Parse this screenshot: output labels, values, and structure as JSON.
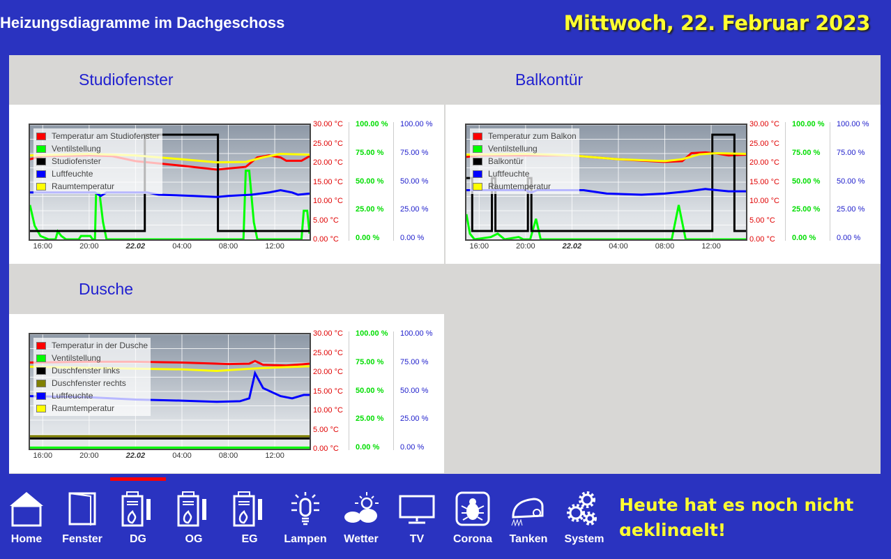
{
  "header": {
    "title": "Heizungsdiagramme im Dachgeschoss",
    "date": "Mittwoch, 22. Februar 2023"
  },
  "axes": {
    "temp": [
      "30.00 °C",
      "25.00 °C",
      "20.00 °C",
      "15.00 °C",
      "10.00 °C",
      "5.00 °C",
      "0.00 °C"
    ],
    "valve": [
      "100.00 %",
      "75.00 %",
      "50.00 %",
      "25.00 %",
      "0.00 %"
    ],
    "humidity": [
      "100.00 %",
      "75.00 %",
      "50.00 %",
      "25.00 %",
      "0.00 %"
    ],
    "x_ticks": [
      "16:00",
      "20:00",
      "22.02",
      "04:00",
      "08:00",
      "12:00"
    ],
    "colors": {
      "temp": "#e00000",
      "valve": "#00dd00",
      "humidity": "#2020cc"
    }
  },
  "chart_data": [
    {
      "type": "line",
      "title": "Studiofenster",
      "x_range_hours": [
        14.9,
        39
      ],
      "ylim_temp": [
        0,
        30
      ],
      "ylim_pct": [
        0,
        100
      ],
      "series": [
        {
          "name": "Temperatur am Studiofenster",
          "color": "#ff0000",
          "axis": "temp",
          "points": [
            [
              14.9,
              21
            ],
            [
              16,
              21.8
            ],
            [
              20,
              22
            ],
            [
              22,
              21.8
            ],
            [
              24,
              20.5
            ],
            [
              28,
              19.3
            ],
            [
              31,
              18.3
            ],
            [
              33.5,
              19
            ],
            [
              34.5,
              21.5
            ],
            [
              35.5,
              22
            ],
            [
              36.5,
              21.5
            ],
            [
              37,
              20.6
            ],
            [
              38.3,
              20.6
            ],
            [
              39,
              21.8
            ]
          ]
        },
        {
          "name": "Ventilstellung",
          "color": "#00ff00",
          "axis": "pct",
          "points": [
            [
              14.9,
              30
            ],
            [
              15.3,
              12
            ],
            [
              15.8,
              3
            ],
            [
              16.5,
              0
            ],
            [
              17.1,
              0
            ],
            [
              17.3,
              7
            ],
            [
              17.6,
              3
            ],
            [
              18,
              0
            ],
            [
              19.1,
              0
            ],
            [
              19.3,
              3
            ],
            [
              20.1,
              3
            ],
            [
              20.3,
              0
            ],
            [
              20.5,
              0
            ],
            [
              20.6,
              40
            ],
            [
              20.9,
              40
            ],
            [
              21.2,
              15
            ],
            [
              21.5,
              0
            ],
            [
              33.3,
              0
            ],
            [
              33.5,
              60
            ],
            [
              33.8,
              60
            ],
            [
              34.2,
              15
            ],
            [
              34.5,
              0
            ],
            [
              38.3,
              0
            ],
            [
              38.5,
              25
            ],
            [
              38.8,
              25
            ],
            [
              39,
              5
            ]
          ]
        },
        {
          "name": "Studiofenster",
          "color": "#000000",
          "axis": "binary",
          "points": [
            [
              14.9,
              0
            ],
            [
              24.8,
              0
            ],
            [
              24.8,
              1
            ],
            [
              31.1,
              1
            ],
            [
              31.1,
              0
            ],
            [
              39,
              0
            ]
          ]
        },
        {
          "name": "Luftfeuchte",
          "color": "#0000ff",
          "axis": "pct",
          "points": [
            [
              14.9,
              41
            ],
            [
              20.5,
              41
            ],
            [
              21,
              38
            ],
            [
              21.5,
              41
            ],
            [
              25,
              41
            ],
            [
              26,
              39
            ],
            [
              29,
              38
            ],
            [
              31,
              37
            ],
            [
              32,
              38
            ],
            [
              34,
              39
            ],
            [
              35.5,
              41
            ],
            [
              36.5,
              43
            ],
            [
              37.5,
              41
            ],
            [
              38,
              39
            ],
            [
              39,
              40
            ]
          ]
        },
        {
          "name": "Raumtemperatur",
          "color": "#ffff00",
          "axis": "temp",
          "points": [
            [
              14.9,
              22
            ],
            [
              20,
              22.4
            ],
            [
              24,
              22
            ],
            [
              28,
              21
            ],
            [
              31,
              20.2
            ],
            [
              33.5,
              20.3
            ],
            [
              35,
              21.5
            ],
            [
              36.5,
              22.4
            ],
            [
              39,
              22.2
            ]
          ]
        }
      ]
    },
    {
      "type": "line",
      "title": "Balkontür",
      "x_range_hours": [
        14.9,
        39
      ],
      "ylim_temp": [
        0,
        30
      ],
      "ylim_pct": [
        0,
        100
      ],
      "series": [
        {
          "name": "Temperatur zum Balkon",
          "color": "#ff0000",
          "axis": "temp",
          "points": [
            [
              14.9,
              21.6
            ],
            [
              16,
              22
            ],
            [
              20,
              22
            ],
            [
              24,
              22
            ],
            [
              28,
              21
            ],
            [
              32,
              20.3
            ],
            [
              33.5,
              20.5
            ],
            [
              34.3,
              22.6
            ],
            [
              35.5,
              22.8
            ],
            [
              36.5,
              22.5
            ],
            [
              37.5,
              22
            ],
            [
              39,
              22.2
            ]
          ]
        },
        {
          "name": "Ventilstellung",
          "color": "#00ff00",
          "axis": "pct",
          "points": [
            [
              14.9,
              22
            ],
            [
              15.2,
              5
            ],
            [
              15.6,
              0
            ],
            [
              17,
              2
            ],
            [
              17.6,
              5
            ],
            [
              18.2,
              0
            ],
            [
              19.4,
              2
            ],
            [
              19.8,
              0
            ],
            [
              20.4,
              0
            ],
            [
              20.9,
              18
            ],
            [
              21.3,
              0
            ],
            [
              32.6,
              0
            ],
            [
              33.2,
              30
            ],
            [
              33.8,
              0
            ],
            [
              39,
              0
            ]
          ]
        },
        {
          "name": "Balkontür",
          "color": "#000000",
          "axis": "binary",
          "points": [
            [
              14.9,
              0.55
            ],
            [
              15.4,
              0.55
            ],
            [
              15.4,
              0
            ],
            [
              17.1,
              0
            ],
            [
              17.1,
              0.55
            ],
            [
              17.4,
              0.55
            ],
            [
              17.4,
              0
            ],
            [
              20.2,
              0
            ],
            [
              20.2,
              0.55
            ],
            [
              20.5,
              0.55
            ],
            [
              20.5,
              0
            ],
            [
              36.1,
              0
            ],
            [
              36.1,
              1
            ],
            [
              38,
              1
            ],
            [
              38,
              0
            ],
            [
              39,
              0
            ]
          ]
        },
        {
          "name": "Luftfeuchte",
          "color": "#0000ff",
          "axis": "pct",
          "points": [
            [
              14.9,
              43
            ],
            [
              20,
              43
            ],
            [
              20.5,
              41
            ],
            [
              21,
              43
            ],
            [
              25,
              43
            ],
            [
              27,
              40
            ],
            [
              30,
              39
            ],
            [
              32,
              40
            ],
            [
              34,
              42
            ],
            [
              35.5,
              44
            ],
            [
              36.5,
              43
            ],
            [
              37.5,
              42
            ],
            [
              39,
              42
            ]
          ]
        },
        {
          "name": "Raumtemperatur",
          "color": "#ffff00",
          "axis": "temp",
          "points": [
            [
              14.9,
              22.2
            ],
            [
              20,
              22.4
            ],
            [
              24,
              22
            ],
            [
              28,
              21
            ],
            [
              32,
              20.5
            ],
            [
              33.5,
              21
            ],
            [
              35,
              22.3
            ],
            [
              36.5,
              22.6
            ],
            [
              39,
              22.4
            ]
          ]
        }
      ]
    },
    {
      "type": "line",
      "title": "Dusche",
      "x_range_hours": [
        14.9,
        39
      ],
      "ylim_temp": [
        0,
        30
      ],
      "ylim_pct": [
        0,
        100
      ],
      "series": [
        {
          "name": "Temperatur in der Dusche",
          "color": "#ff0000",
          "axis": "temp",
          "points": [
            [
              14.9,
              22.6
            ],
            [
              20,
              22.8
            ],
            [
              24,
              22.8
            ],
            [
              28,
              22.6
            ],
            [
              32,
              22.2
            ],
            [
              33.8,
              22.3
            ],
            [
              34.3,
              23
            ],
            [
              35,
              22
            ],
            [
              37,
              21.8
            ],
            [
              39,
              22.3
            ]
          ]
        },
        {
          "name": "Ventilstellung",
          "color": "#00ff00",
          "axis": "pct",
          "points": [
            [
              14.9,
              1
            ],
            [
              39,
              1
            ]
          ]
        },
        {
          "name": "Duschfenster links",
          "color": "#000000",
          "axis": "pct",
          "points": [
            [
              14.9,
              9
            ],
            [
              39,
              9
            ]
          ]
        },
        {
          "name": "Duschfenster rechts",
          "color": "#808000",
          "axis": "pct",
          "points": [
            [
              14.9,
              11
            ],
            [
              39,
              11
            ]
          ]
        },
        {
          "name": "Luftfeuchte",
          "color": "#0000ff",
          "axis": "pct",
          "points": [
            [
              14.9,
              46
            ],
            [
              20,
              45
            ],
            [
              24,
              43
            ],
            [
              28,
              42
            ],
            [
              31,
              41
            ],
            [
              33,
              41.5
            ],
            [
              33.8,
              44
            ],
            [
              34.3,
              66
            ],
            [
              35,
              53
            ],
            [
              36.5,
              46
            ],
            [
              37.5,
              44
            ],
            [
              38.5,
              47
            ],
            [
              39,
              47
            ]
          ]
        },
        {
          "name": "Raumtemperatur",
          "color": "#ffff00",
          "axis": "temp",
          "points": [
            [
              14.9,
              21.5
            ],
            [
              20,
              21.2
            ],
            [
              24,
              21
            ],
            [
              28,
              20.8
            ],
            [
              31,
              20.4
            ],
            [
              34,
              21
            ],
            [
              36,
              21.3
            ],
            [
              39,
              21.6
            ]
          ]
        }
      ]
    }
  ],
  "nav": {
    "items": [
      {
        "label": "Home"
      },
      {
        "label": "Fenster"
      },
      {
        "label": "DG"
      },
      {
        "label": "OG"
      },
      {
        "label": "EG"
      },
      {
        "label": "Lampen"
      },
      {
        "label": "Wetter"
      },
      {
        "label": "TV"
      },
      {
        "label": "Corona"
      },
      {
        "label": "Tanken"
      },
      {
        "label": "System"
      }
    ],
    "active": "DG"
  },
  "doorbell": {
    "message": "Heute hat es noch nicht geklingelt!"
  }
}
